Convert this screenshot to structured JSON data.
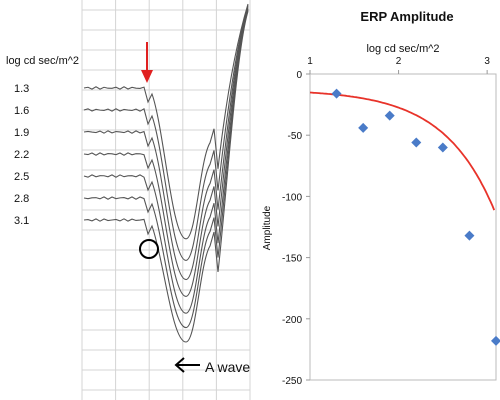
{
  "chart_data": [
    {
      "type": "line",
      "ylabel": "log cd sec/m^2",
      "intensity_labels": [
        "1.3",
        "1.6",
        "1.9",
        "2.2",
        "2.5",
        "2.8",
        "3.1"
      ],
      "annotation": "A wave",
      "grid": true,
      "series": [
        {
          "intensity": "1.3",
          "a_wave_trough": 0.37,
          "b_wave_peak": 1.0
        },
        {
          "intensity": "1.6",
          "a_wave_trough": 0.46,
          "b_wave_peak": 1.0
        },
        {
          "intensity": "1.9",
          "a_wave_trough": 0.54,
          "b_wave_peak": 1.0
        },
        {
          "intensity": "2.2",
          "a_wave_trough": 0.61,
          "b_wave_peak": 1.0
        },
        {
          "intensity": "2.5",
          "a_wave_trough": 0.68,
          "b_wave_peak": 1.0
        },
        {
          "intensity": "2.8",
          "a_wave_trough": 0.74,
          "b_wave_peak": 1.0
        },
        {
          "intensity": "3.1",
          "a_wave_trough": 0.8,
          "b_wave_peak": 1.0
        }
      ],
      "marker_colors": {
        "arrow": "#e02020",
        "circle": "#000000"
      }
    },
    {
      "type": "scatter",
      "title": "ERP Amplitude",
      "xlabel": "log cd sec/m^2",
      "ylabel": "Amplitude",
      "xlim": [
        1,
        3.1
      ],
      "ylim": [
        -250,
        0
      ],
      "x_ticks": [
        "1",
        "2",
        "3"
      ],
      "y_ticks": [
        "0",
        "-50",
        "-100",
        "-150",
        "-200",
        "-250"
      ],
      "points": [
        {
          "x": 1.3,
          "y": -16
        },
        {
          "x": 1.6,
          "y": -44
        },
        {
          "x": 1.9,
          "y": -34
        },
        {
          "x": 2.2,
          "y": -56
        },
        {
          "x": 2.5,
          "y": -60
        },
        {
          "x": 2.8,
          "y": -132
        },
        {
          "x": 3.1,
          "y": -218
        }
      ],
      "trend": {
        "type": "curve",
        "color": "#e8332a"
      },
      "point_color": "#4a7bc8",
      "grid": false
    }
  ]
}
